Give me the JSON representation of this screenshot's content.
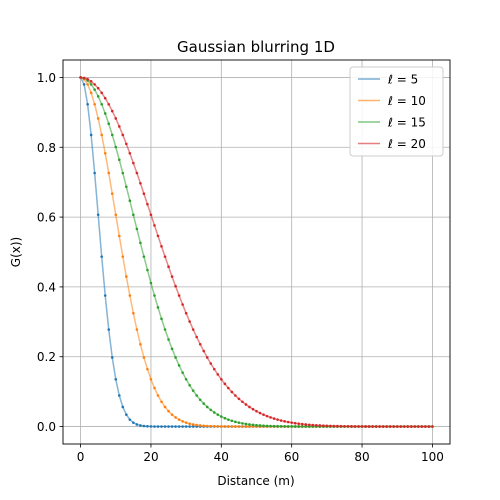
{
  "chart_data": {
    "type": "line",
    "title": "Gaussian blurring 1D",
    "xlabel": "Distance (m)",
    "ylabel": "G(x))",
    "xlim": [
      -5,
      105
    ],
    "ylim": [
      -0.05,
      1.05
    ],
    "xticks": [
      0,
      20,
      40,
      60,
      80,
      100
    ],
    "yticks": [
      0.0,
      0.2,
      0.4,
      0.6,
      0.8,
      1.0
    ],
    "xtick_labels": [
      "0",
      "20",
      "40",
      "60",
      "80",
      "100"
    ],
    "ytick_labels": [
      "0.0",
      "0.2",
      "0.4",
      "0.6",
      "0.8",
      "1.0"
    ],
    "grid": true,
    "legend_position": "top-right",
    "x": {
      "start": 0,
      "end": 100,
      "step": 1
    },
    "function": "exp(-x^2 / (2*l^2))",
    "series": [
      {
        "name": "ℓ = 5",
        "ell": 5,
        "color": "#1f77b4"
      },
      {
        "name": "ℓ = 10",
        "ell": 10,
        "color": "#ff7f0e"
      },
      {
        "name": "ℓ = 15",
        "ell": 15,
        "color": "#2ca02c"
      },
      {
        "name": "ℓ = 20",
        "ell": 20,
        "color": "#d62728"
      }
    ]
  }
}
